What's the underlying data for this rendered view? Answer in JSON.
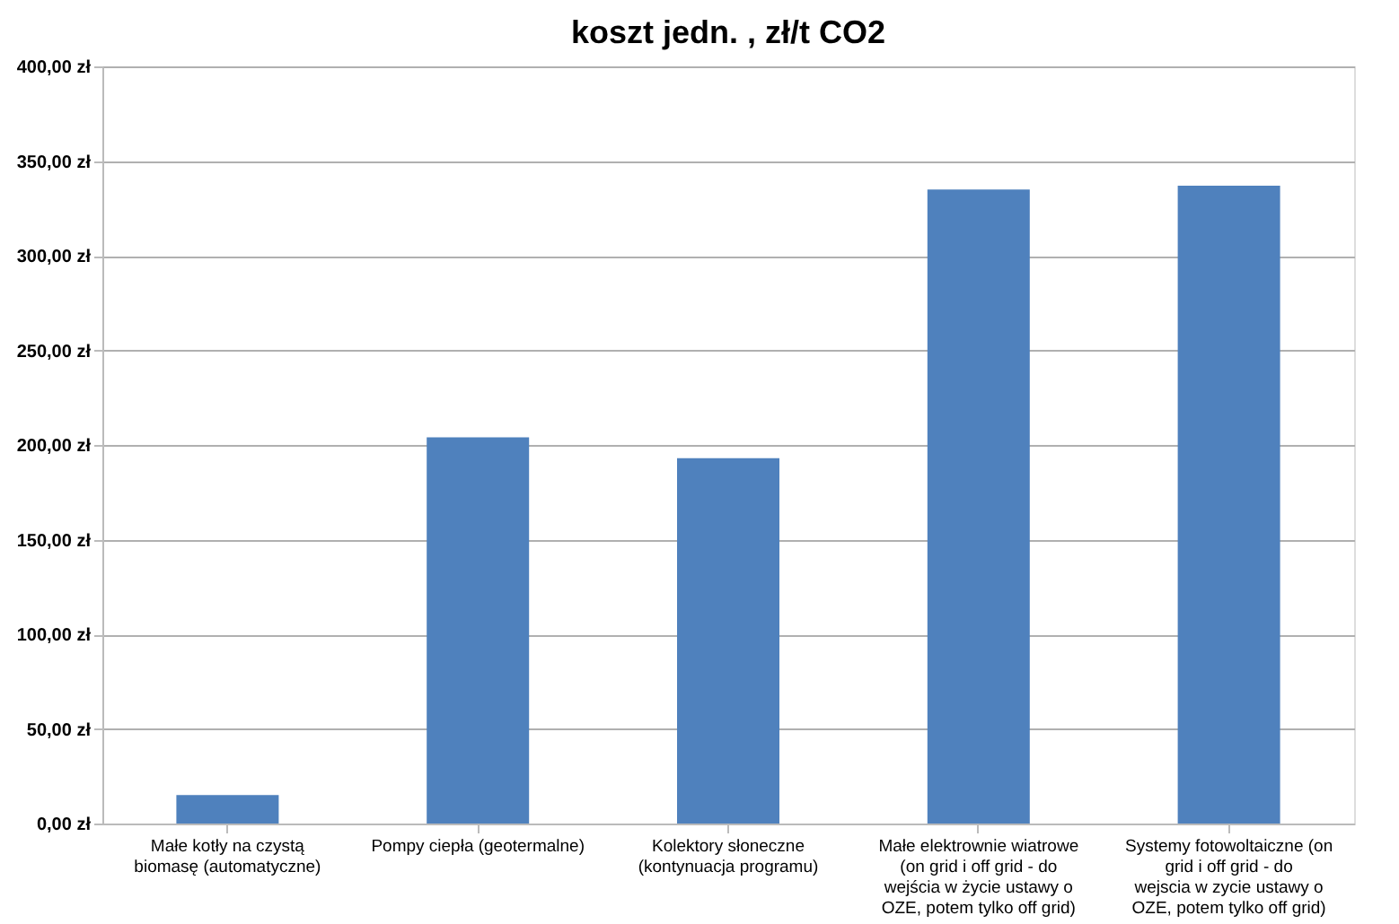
{
  "chart_data": {
    "type": "bar",
    "title": "koszt jedn. , zł/t CO2",
    "categories": [
      "Małe kotły na czystą biomasę (automatyczne)",
      "Pompy ciepła (geotermalne)",
      "Kolektory słoneczne (kontynuacja programu)",
      "Małe elektrownie wiatrowe (on grid i off grid - do wejścia w życie ustawy o OZE, potem tylko off grid)",
      "Systemy fotowoltaiczne (on grid i off grid - do wejscia w zycie ustawy o OZE, potem tylko off grid)"
    ],
    "values": [
      15,
      204,
      193,
      335,
      337
    ],
    "color": "#4f81bd",
    "ylim": [
      0,
      400
    ],
    "yticks": [
      {
        "value": 0,
        "label": "0,00 zł"
      },
      {
        "value": 50,
        "label": "50,00 zł"
      },
      {
        "value": 100,
        "label": "100,00 zł"
      },
      {
        "value": 150,
        "label": "150,00 zł"
      },
      {
        "value": 200,
        "label": "200,00 zł"
      },
      {
        "value": 250,
        "label": "250,00 zł"
      },
      {
        "value": 300,
        "label": "300,00 zł"
      },
      {
        "value": 350,
        "label": "350,00 zł"
      },
      {
        "value": 400,
        "label": "400,00 zł"
      }
    ],
    "grid": "y"
  }
}
